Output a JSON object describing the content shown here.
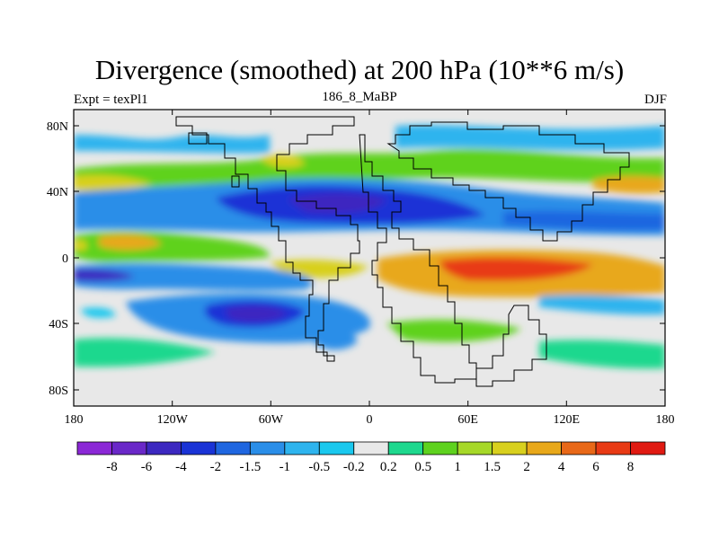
{
  "title": "Divergence (smoothed) at 200 hPa (10**6 m/s)",
  "left_label": "Expt = texPl1",
  "center_label": "186_8_MaBP",
  "right_label": "DJF",
  "lat_ticks": [
    "80N",
    "40N",
    "0",
    "40S",
    "80S"
  ],
  "lon_ticks": [
    "180",
    "120W",
    "60W",
    "0",
    "60E",
    "120E",
    "180"
  ],
  "colorbar": {
    "labels": [
      "-8",
      "-6",
      "-4",
      "-2",
      "-1.5",
      "-1",
      "-0.5",
      "-0.2",
      "0.2",
      "0.5",
      "1",
      "1.5",
      "2",
      "4",
      "6",
      "8"
    ],
    "colors": [
      "#8b28d6",
      "#6a28c8",
      "#3c28c0",
      "#1a33d6",
      "#1f66e0",
      "#2a8ee8",
      "#2eb4ee",
      "#1ac8ee",
      "#e8e8e8",
      "#1ed88e",
      "#5ed21e",
      "#a6d828",
      "#d8d01e",
      "#e8a81a",
      "#e86818",
      "#e83a14",
      "#e01a12"
    ]
  }
}
